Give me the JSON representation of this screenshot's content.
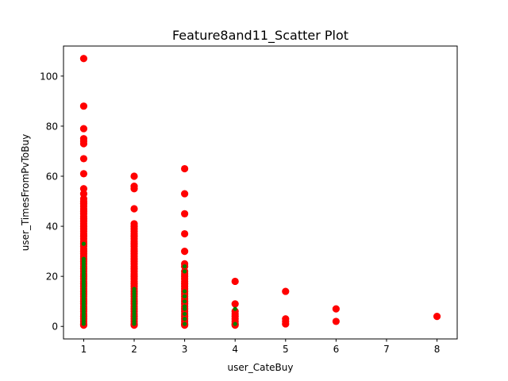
{
  "chart_data": {
    "type": "scatter",
    "title": "Feature8and11_Scatter Plot",
    "xlabel": "user_CateBuy",
    "ylabel": "user_TimesFromPvToBuy",
    "xlim": [
      0.6,
      8.4
    ],
    "ylim": [
      -5,
      112
    ],
    "xticks": [
      1,
      2,
      3,
      4,
      5,
      6,
      7,
      8
    ],
    "yticks": [
      0,
      20,
      40,
      60,
      80,
      100
    ],
    "grid": false,
    "legend": "none",
    "series": [
      {
        "color": "#ff0000",
        "points": [
          [
            1,
            0.5
          ],
          [
            1,
            1
          ],
          [
            1,
            2
          ],
          [
            1,
            3
          ],
          [
            1,
            4
          ],
          [
            1,
            5
          ],
          [
            1,
            6
          ],
          [
            1,
            7
          ],
          [
            1,
            8
          ],
          [
            1,
            9
          ],
          [
            1,
            10
          ],
          [
            1,
            11
          ],
          [
            1,
            12
          ],
          [
            1,
            13
          ],
          [
            1,
            14
          ],
          [
            1,
            15
          ],
          [
            1,
            16
          ],
          [
            1,
            17
          ],
          [
            1,
            18
          ],
          [
            1,
            19
          ],
          [
            1,
            20
          ],
          [
            1,
            21
          ],
          [
            1,
            22
          ],
          [
            1,
            23
          ],
          [
            1,
            24
          ],
          [
            1,
            25
          ],
          [
            1,
            26
          ],
          [
            1,
            27
          ],
          [
            1,
            28
          ],
          [
            1,
            29
          ],
          [
            1,
            30
          ],
          [
            1,
            31
          ],
          [
            1,
            32
          ],
          [
            1,
            33
          ],
          [
            1,
            34
          ],
          [
            1,
            35
          ],
          [
            1,
            36
          ],
          [
            1,
            37
          ],
          [
            1,
            38
          ],
          [
            1,
            39
          ],
          [
            1,
            40
          ],
          [
            1,
            41
          ],
          [
            1,
            42
          ],
          [
            1,
            43
          ],
          [
            1,
            44
          ],
          [
            1,
            45
          ],
          [
            1,
            46
          ],
          [
            1,
            47
          ],
          [
            1,
            48
          ],
          [
            1,
            49
          ],
          [
            1,
            50
          ],
          [
            1,
            51
          ],
          [
            1,
            53
          ],
          [
            1,
            55
          ],
          [
            1,
            61
          ],
          [
            1,
            67
          ],
          [
            1,
            73
          ],
          [
            1,
            74
          ],
          [
            1,
            75
          ],
          [
            1,
            79
          ],
          [
            1,
            88
          ],
          [
            1,
            107
          ],
          [
            2,
            0.5
          ],
          [
            2,
            1
          ],
          [
            2,
            2
          ],
          [
            2,
            3
          ],
          [
            2,
            4
          ],
          [
            2,
            5
          ],
          [
            2,
            6
          ],
          [
            2,
            7
          ],
          [
            2,
            8
          ],
          [
            2,
            9
          ],
          [
            2,
            10
          ],
          [
            2,
            11
          ],
          [
            2,
            12
          ],
          [
            2,
            13
          ],
          [
            2,
            14
          ],
          [
            2,
            15
          ],
          [
            2,
            16
          ],
          [
            2,
            17
          ],
          [
            2,
            18
          ],
          [
            2,
            19
          ],
          [
            2,
            20
          ],
          [
            2,
            21
          ],
          [
            2,
            22
          ],
          [
            2,
            23
          ],
          [
            2,
            24
          ],
          [
            2,
            25
          ],
          [
            2,
            26
          ],
          [
            2,
            27
          ],
          [
            2,
            28
          ],
          [
            2,
            29
          ],
          [
            2,
            30
          ],
          [
            2,
            31
          ],
          [
            2,
            32
          ],
          [
            2,
            33
          ],
          [
            2,
            34
          ],
          [
            2,
            35
          ],
          [
            2,
            36
          ],
          [
            2,
            37
          ],
          [
            2,
            38
          ],
          [
            2,
            39
          ],
          [
            2,
            40
          ],
          [
            2,
            41
          ],
          [
            2,
            47
          ],
          [
            2,
            55
          ],
          [
            2,
            56
          ],
          [
            2,
            60
          ],
          [
            3,
            0.5
          ],
          [
            3,
            1
          ],
          [
            3,
            2
          ],
          [
            3,
            3
          ],
          [
            3,
            4
          ],
          [
            3,
            5
          ],
          [
            3,
            6
          ],
          [
            3,
            7
          ],
          [
            3,
            8
          ],
          [
            3,
            9
          ],
          [
            3,
            10
          ],
          [
            3,
            11
          ],
          [
            3,
            12
          ],
          [
            3,
            13
          ],
          [
            3,
            14
          ],
          [
            3,
            15
          ],
          [
            3,
            16
          ],
          [
            3,
            17
          ],
          [
            3,
            18
          ],
          [
            3,
            19
          ],
          [
            3,
            20
          ],
          [
            3,
            21
          ],
          [
            3,
            22
          ],
          [
            3,
            24
          ],
          [
            3,
            25
          ],
          [
            3,
            30
          ],
          [
            3,
            37
          ],
          [
            3,
            45
          ],
          [
            3,
            53
          ],
          [
            3,
            63
          ],
          [
            4,
            0.5
          ],
          [
            4,
            1
          ],
          [
            4,
            2
          ],
          [
            4,
            3
          ],
          [
            4,
            4
          ],
          [
            4,
            5
          ],
          [
            4,
            6
          ],
          [
            4,
            9
          ],
          [
            4,
            18
          ],
          [
            5,
            1
          ],
          [
            5,
            2
          ],
          [
            5,
            3
          ],
          [
            5,
            14
          ],
          [
            6,
            2
          ],
          [
            6,
            7
          ],
          [
            8,
            4
          ]
        ]
      },
      {
        "color": "#008000",
        "points": [
          [
            1,
            1
          ],
          [
            1,
            2
          ],
          [
            1,
            3
          ],
          [
            1,
            4
          ],
          [
            1,
            5
          ],
          [
            1,
            6
          ],
          [
            1,
            7
          ],
          [
            1,
            8
          ],
          [
            1,
            9
          ],
          [
            1,
            10
          ],
          [
            1,
            11
          ],
          [
            1,
            12
          ],
          [
            1,
            13
          ],
          [
            1,
            14
          ],
          [
            1,
            15
          ],
          [
            1,
            16
          ],
          [
            1,
            17
          ],
          [
            1,
            18
          ],
          [
            1,
            19
          ],
          [
            1,
            20
          ],
          [
            1,
            21
          ],
          [
            1,
            22
          ],
          [
            1,
            23
          ],
          [
            1,
            24
          ],
          [
            1,
            25
          ],
          [
            1,
            26
          ],
          [
            1,
            27
          ],
          [
            1,
            33
          ],
          [
            2,
            1
          ],
          [
            2,
            2
          ],
          [
            2,
            3
          ],
          [
            2,
            4
          ],
          [
            2,
            5
          ],
          [
            2,
            6
          ],
          [
            2,
            7
          ],
          [
            2,
            8
          ],
          [
            2,
            9
          ],
          [
            2,
            10
          ],
          [
            2,
            11
          ],
          [
            2,
            12
          ],
          [
            2,
            13
          ],
          [
            2,
            14
          ],
          [
            2,
            15
          ],
          [
            3,
            1
          ],
          [
            3,
            3
          ],
          [
            3,
            5
          ],
          [
            3,
            7
          ],
          [
            3,
            8
          ],
          [
            3,
            10
          ],
          [
            3,
            12
          ],
          [
            3,
            14
          ],
          [
            3,
            22
          ],
          [
            3,
            24
          ],
          [
            4,
            1
          ],
          [
            4,
            7
          ]
        ]
      }
    ]
  }
}
